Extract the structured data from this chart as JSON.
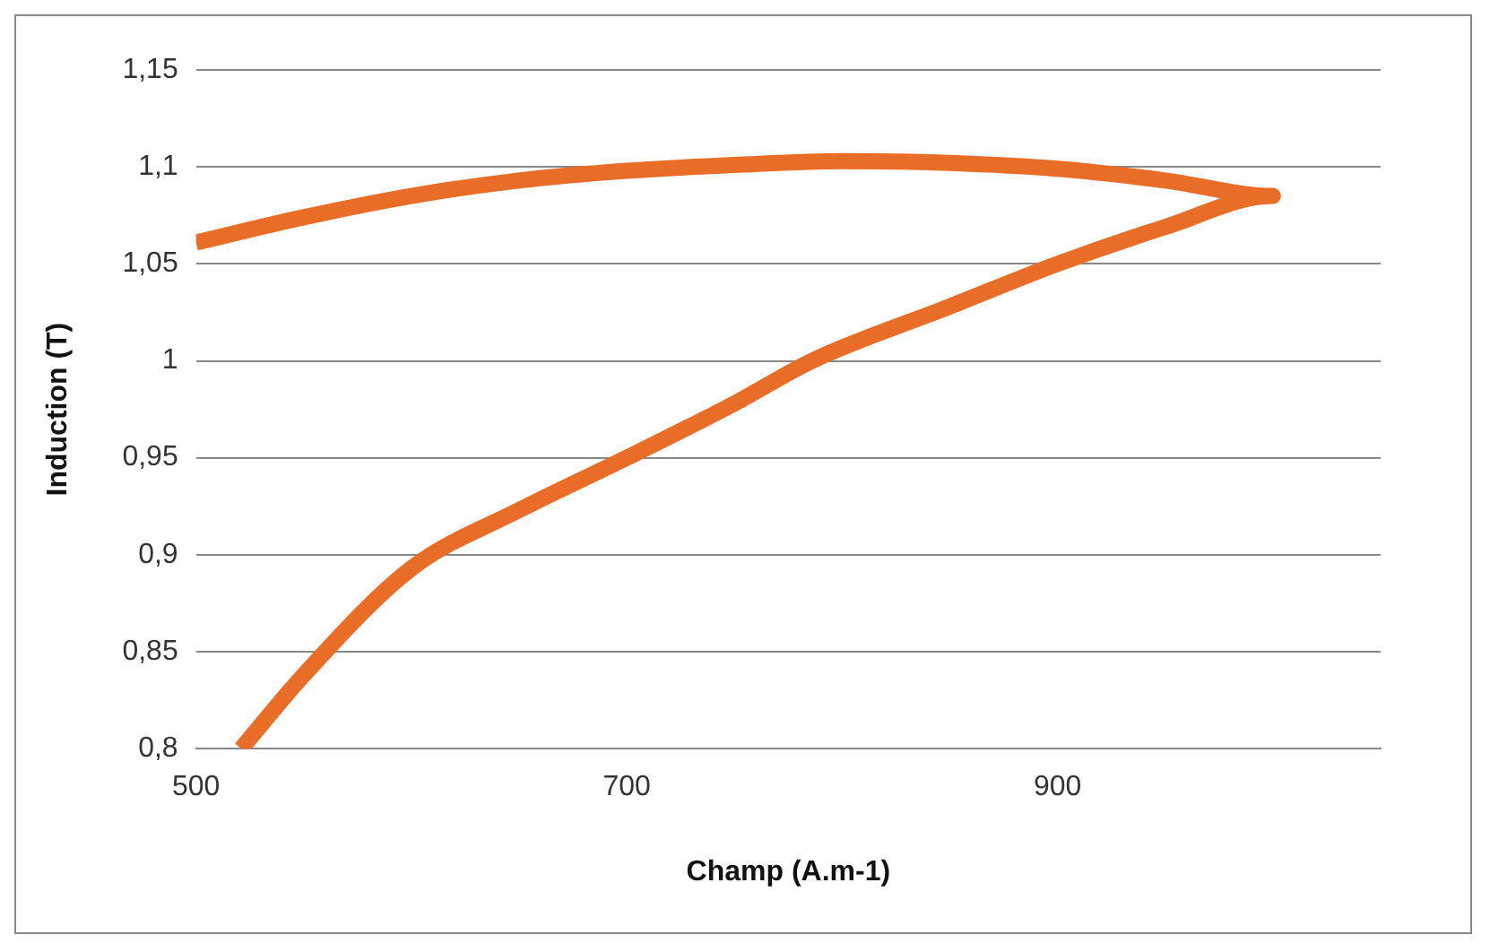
{
  "chart_data": {
    "type": "line",
    "xlabel": "Champ (A.m-1)",
    "ylabel": "Induction (T)",
    "series": [
      {
        "color": "#e96d26",
        "x": [
          521,
          550,
          600,
          650,
          700,
          750,
          786,
          850,
          900,
          950,
          1000,
          950,
          900,
          850,
          800,
          750,
          700,
          650,
          600,
          550,
          500
        ],
        "values": [
          0.8,
          0.838,
          0.893,
          0.923,
          0.95,
          0.978,
          1.0,
          1.028,
          1.05,
          1.069,
          1.085,
          1.093,
          1.099,
          1.102,
          1.103,
          1.101,
          1.098,
          1.093,
          1.085,
          1.074,
          1.061
        ]
      }
    ],
    "xlim": [
      500,
      1050
    ],
    "xticks": [
      500,
      700,
      900
    ],
    "ylim": [
      0.8,
      1.15
    ],
    "yticks": [
      {
        "value": 0.8,
        "label": "0,8"
      },
      {
        "value": 0.85,
        "label": "0,85"
      },
      {
        "value": 0.9,
        "label": "0,9"
      },
      {
        "value": 0.95,
        "label": "0,95"
      },
      {
        "value": 1,
        "label": "1"
      },
      {
        "value": 1.05,
        "label": "1,05"
      },
      {
        "value": 1.1,
        "label": "1,1"
      },
      {
        "value": 1.15,
        "label": "1,15"
      }
    ],
    "grid": "y",
    "legend": false,
    "marker": "none",
    "line_style": "solid"
  }
}
